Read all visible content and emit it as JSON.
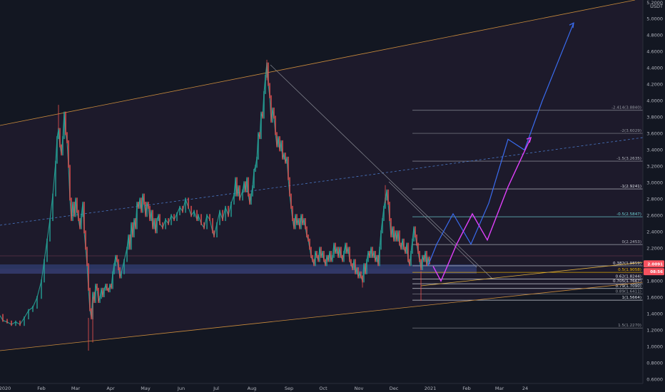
{
  "chart_data": {
    "type": "line",
    "currency": "USDT",
    "x_labels": [
      "2020",
      "Feb",
      "Mar",
      "Apr",
      "May",
      "Jun",
      "Jul",
      "Aug",
      "Sep",
      "Oct",
      "Nov",
      "Dec",
      "2021",
      "Feb",
      "Mar",
      "24"
    ],
    "y_ticks": [
      "5.2000",
      "5.0000",
      "4.8000",
      "4.6000",
      "4.4000",
      "4.2000",
      "4.0000",
      "3.8000",
      "3.6000",
      "3.4000",
      "3.2000",
      "3.0000",
      "2.8000",
      "2.6000",
      "2.4000",
      "2.2000",
      "2.0000",
      "1.8000",
      "1.6000",
      "1.4000",
      "1.2000",
      "1.0000",
      "0.8000",
      "0.6000"
    ],
    "ylim": [
      0.55,
      5.23
    ],
    "fib_levels": [
      {
        "label": "-2.414(3.8840)",
        "value": 3.884,
        "color": "#9598a1"
      },
      {
        "label": "-2(3.6029)",
        "value": 3.6029,
        "color": "#9598a1"
      },
      {
        "label": "-1.5(3.2635)",
        "value": 3.2635,
        "color": "#b2b5be"
      },
      {
        "label": "-1(2.9241)",
        "value": 2.9241,
        "color": "#e0e3eb"
      },
      {
        "label": "-0.5(2.5847)",
        "value": 2.5847,
        "color": "#6fd3d6"
      },
      {
        "label": "0(2.2453)",
        "value": 2.2453,
        "color": "#b2b5be"
      },
      {
        "label": "0.382(1.9859)",
        "value": 1.9859,
        "color": "#e0e3eb"
      },
      {
        "label": "0.5(1.9058)",
        "value": 1.9058,
        "color": "#f0b500"
      },
      {
        "label": "0.62(1.8244)",
        "value": 1.8244,
        "color": "#e0e3eb"
      },
      {
        "label": "0.705(1.7667)",
        "value": 1.7667,
        "color": "#e0e3eb"
      },
      {
        "label": "0.79(1.7090)",
        "value": 1.709,
        "color": "#e0e3eb"
      },
      {
        "label": "0.89(1.6411)",
        "value": 1.6411,
        "color": "#9598a1"
      },
      {
        "label": "1(1.5664)",
        "value": 1.5664,
        "color": "#e0e3eb"
      },
      {
        "label": "1.5(1.2270)",
        "value": 1.227,
        "color": "#9598a1"
      }
    ],
    "price_badges": [
      {
        "label": "2.0091",
        "value": 2.0091,
        "color": "#f7525f"
      },
      {
        "label": "08:56",
        "value": 1.915,
        "color": "#f7525f"
      }
    ],
    "price_path": [
      [
        0,
        1.38
      ],
      [
        4,
        1.32
      ],
      [
        10,
        1.3
      ],
      [
        16,
        1.27
      ],
      [
        22,
        1.3
      ],
      [
        28,
        1.27
      ],
      [
        34,
        1.35
      ],
      [
        40,
        1.44
      ],
      [
        46,
        1.48
      ],
      [
        52,
        1.6
      ],
      [
        58,
        1.8
      ],
      [
        62,
        2.05
      ],
      [
        66,
        2.3
      ],
      [
        70,
        2.55
      ],
      [
        74,
        2.85
      ],
      [
        78,
        3.25
      ],
      [
        80,
        3.55
      ],
      [
        82,
        3.65
      ],
      [
        84,
        3.45
      ],
      [
        86,
        3.35
      ],
      [
        88,
        3.55
      ],
      [
        90,
        3.85
      ],
      [
        92,
        3.6
      ],
      [
        94,
        3.5
      ],
      [
        96,
        3.2
      ],
      [
        98,
        2.8
      ],
      [
        100,
        2.55
      ],
      [
        102,
        2.75
      ],
      [
        104,
        2.6
      ],
      [
        106,
        2.8
      ],
      [
        108,
        2.65
      ],
      [
        110,
        2.55
      ],
      [
        112,
        2.45
      ],
      [
        114,
        2.6
      ],
      [
        116,
        2.75
      ],
      [
        118,
        2.4
      ],
      [
        120,
        2.2
      ],
      [
        122,
        2.0
      ],
      [
        124,
        1.7
      ],
      [
        126,
        1.45
      ],
      [
        128,
        1.35
      ],
      [
        130,
        1.65
      ],
      [
        132,
        1.55
      ],
      [
        134,
        1.75
      ],
      [
        136,
        1.7
      ],
      [
        138,
        1.55
      ],
      [
        140,
        1.6
      ],
      [
        142,
        1.7
      ],
      [
        144,
        1.62
      ],
      [
        146,
        1.7
      ],
      [
        148,
        1.75
      ],
      [
        150,
        1.7
      ],
      [
        152,
        1.68
      ],
      [
        154,
        1.75
      ],
      [
        156,
        1.72
      ],
      [
        158,
        1.9
      ],
      [
        160,
        2.0
      ],
      [
        162,
        2.1
      ],
      [
        164,
        2.05
      ],
      [
        166,
        1.95
      ],
      [
        168,
        1.85
      ],
      [
        170,
        1.9
      ],
      [
        174,
        2.05
      ],
      [
        178,
        2.2
      ],
      [
        180,
        2.35
      ],
      [
        182,
        2.2
      ],
      [
        184,
        2.5
      ],
      [
        186,
        2.35
      ],
      [
        188,
        2.55
      ],
      [
        190,
        2.45
      ],
      [
        192,
        2.75
      ],
      [
        194,
        2.7
      ],
      [
        196,
        2.8
      ],
      [
        198,
        2.65
      ],
      [
        200,
        2.85
      ],
      [
        202,
        2.75
      ],
      [
        204,
        2.6
      ],
      [
        206,
        2.75
      ],
      [
        208,
        2.7
      ],
      [
        210,
        2.55
      ],
      [
        212,
        2.65
      ],
      [
        214,
        2.45
      ],
      [
        216,
        2.55
      ],
      [
        218,
        2.4
      ],
      [
        220,
        2.55
      ],
      [
        222,
        2.6
      ],
      [
        224,
        2.5
      ],
      [
        228,
        2.45
      ],
      [
        232,
        2.55
      ],
      [
        236,
        2.5
      ],
      [
        240,
        2.6
      ],
      [
        244,
        2.55
      ],
      [
        248,
        2.62
      ],
      [
        252,
        2.7
      ],
      [
        256,
        2.65
      ],
      [
        260,
        2.8
      ],
      [
        264,
        2.7
      ],
      [
        268,
        2.6
      ],
      [
        272,
        2.65
      ],
      [
        276,
        2.55
      ],
      [
        278,
        2.6
      ],
      [
        282,
        2.5
      ],
      [
        286,
        2.45
      ],
      [
        290,
        2.6
      ],
      [
        294,
        2.55
      ],
      [
        298,
        2.4
      ],
      [
        300,
        2.35
      ],
      [
        304,
        2.5
      ],
      [
        308,
        2.65
      ],
      [
        312,
        2.55
      ],
      [
        316,
        2.7
      ],
      [
        320,
        2.6
      ],
      [
        324,
        2.75
      ],
      [
        328,
        2.85
      ],
      [
        330,
        3.05
      ],
      [
        332,
        2.85
      ],
      [
        334,
        2.95
      ],
      [
        336,
        2.8
      ],
      [
        340,
        2.9
      ],
      [
        342,
        3.0
      ],
      [
        344,
        2.9
      ],
      [
        346,
        3.05
      ],
      [
        348,
        2.85
      ],
      [
        350,
        2.75
      ],
      [
        352,
        2.85
      ],
      [
        354,
        2.95
      ],
      [
        356,
        3.15
      ],
      [
        358,
        3.2
      ],
      [
        360,
        3.3
      ],
      [
        362,
        3.6
      ],
      [
        364,
        3.55
      ],
      [
        366,
        3.85
      ],
      [
        368,
        3.8
      ],
      [
        370,
        4.1
      ],
      [
        372,
        4.3
      ],
      [
        374,
        4.45
      ],
      [
        376,
        4.2
      ],
      [
        378,
        4.05
      ],
      [
        380,
        3.75
      ],
      [
        382,
        3.9
      ],
      [
        384,
        3.8
      ],
      [
        386,
        3.6
      ],
      [
        388,
        3.45
      ],
      [
        390,
        3.55
      ],
      [
        392,
        3.4
      ],
      [
        394,
        3.5
      ],
      [
        396,
        3.3
      ],
      [
        398,
        3.35
      ],
      [
        400,
        3.25
      ],
      [
        402,
        3.3
      ],
      [
        404,
        3.05
      ],
      [
        406,
        2.85
      ],
      [
        408,
        2.7
      ],
      [
        410,
        2.55
      ],
      [
        412,
        2.45
      ],
      [
        414,
        2.6
      ],
      [
        416,
        2.5
      ],
      [
        418,
        2.55
      ],
      [
        420,
        2.45
      ],
      [
        422,
        2.6
      ],
      [
        424,
        2.5
      ],
      [
        426,
        2.55
      ],
      [
        428,
        2.45
      ],
      [
        430,
        2.35
      ],
      [
        432,
        2.3
      ],
      [
        434,
        2.2
      ],
      [
        436,
        2.1
      ],
      [
        438,
        2.05
      ],
      [
        440,
        2.0
      ],
      [
        442,
        2.15
      ],
      [
        444,
        2.1
      ],
      [
        446,
        2.05
      ],
      [
        448,
        2.2
      ],
      [
        450,
        2.1
      ],
      [
        452,
        2.15
      ],
      [
        454,
        2.05
      ],
      [
        456,
        2.0
      ],
      [
        458,
        2.1
      ],
      [
        460,
        2.05
      ],
      [
        462,
        2.15
      ],
      [
        464,
        2.05
      ],
      [
        466,
        2.1
      ],
      [
        468,
        2.25
      ],
      [
        470,
        2.15
      ],
      [
        472,
        2.2
      ],
      [
        474,
        2.1
      ],
      [
        476,
        2.2
      ],
      [
        478,
        2.1
      ],
      [
        480,
        2.05
      ],
      [
        482,
        2.15
      ],
      [
        484,
        2.25
      ],
      [
        486,
        2.15
      ],
      [
        488,
        2.2
      ],
      [
        490,
        2.05
      ],
      [
        492,
        2.0
      ],
      [
        494,
        1.95
      ],
      [
        496,
        2.05
      ],
      [
        498,
        1.9
      ],
      [
        500,
        1.95
      ],
      [
        502,
        1.85
      ],
      [
        504,
        1.9
      ],
      [
        506,
        1.85
      ],
      [
        508,
        1.8
      ],
      [
        510,
        2.0
      ],
      [
        512,
        1.9
      ],
      [
        514,
        2.05
      ],
      [
        516,
        2.15
      ],
      [
        518,
        2.1
      ],
      [
        520,
        2.2
      ],
      [
        522,
        2.1
      ],
      [
        524,
        2.15
      ],
      [
        526,
        2.05
      ],
      [
        528,
        2.1
      ],
      [
        530,
        2.0
      ],
      [
        532,
        2.2
      ],
      [
        534,
        2.4
      ],
      [
        536,
        2.55
      ],
      [
        538,
        2.7
      ],
      [
        540,
        2.8
      ],
      [
        542,
        2.9
      ],
      [
        544,
        2.75
      ],
      [
        546,
        2.55
      ],
      [
        548,
        2.35
      ],
      [
        550,
        2.45
      ],
      [
        552,
        2.3
      ],
      [
        554,
        2.4
      ],
      [
        556,
        2.3
      ],
      [
        558,
        2.4
      ],
      [
        560,
        2.25
      ],
      [
        562,
        2.2
      ],
      [
        564,
        2.3
      ],
      [
        566,
        2.2
      ],
      [
        568,
        2.15
      ],
      [
        570,
        2.25
      ],
      [
        572,
        2.05
      ],
      [
        574,
        2.0
      ],
      [
        576,
        2.15
      ],
      [
        578,
        2.3
      ],
      [
        580,
        2.45
      ],
      [
        582,
        2.35
      ],
      [
        584,
        2.25
      ],
      [
        586,
        2.15
      ],
      [
        588,
        2.05
      ],
      [
        590,
        1.95
      ],
      [
        592,
        2.1
      ],
      [
        594,
        2.05
      ],
      [
        596,
        2.15
      ],
      [
        598,
        2.0
      ],
      [
        600,
        2.08
      ],
      [
        602,
        2.02
      ]
    ],
    "wicks": [
      [
        82,
        3.65,
        3.95
      ],
      [
        124,
        1.35,
        0.95
      ],
      [
        130,
        1.6,
        1.05
      ],
      [
        374,
        4.25,
        4.5
      ],
      [
        508,
        1.85,
        1.72
      ],
      [
        540,
        2.75,
        2.97
      ],
      [
        590,
        1.92,
        1.56
      ]
    ],
    "projection_blue": [
      [
        600,
        1.99
      ],
      [
        612,
        2.25
      ],
      [
        635,
        2.62
      ],
      [
        660,
        2.25
      ],
      [
        685,
        2.75
      ],
      [
        712,
        3.53
      ],
      [
        735,
        3.4
      ],
      [
        760,
        4.0
      ],
      [
        804,
        4.95
      ]
    ],
    "projection_magenta": [
      [
        607,
        1.98
      ],
      [
        618,
        1.8
      ],
      [
        640,
        2.25
      ],
      [
        662,
        2.62
      ],
      [
        683,
        2.3
      ],
      [
        712,
        2.95
      ],
      [
        744,
        3.55
      ]
    ]
  }
}
